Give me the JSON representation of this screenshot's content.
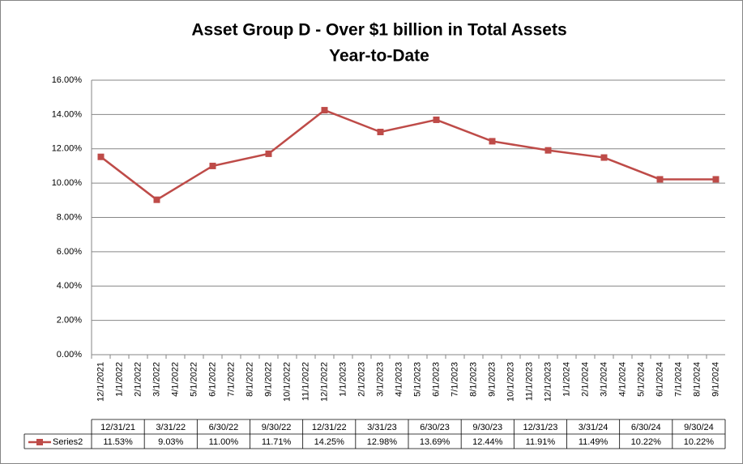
{
  "chart_data": {
    "type": "line",
    "title": "Asset Group D - Over $1 billion in Total Assets",
    "subtitle": "Year-to-Date",
    "categories": [
      "12/31/21",
      "3/31/22",
      "6/30/22",
      "9/30/22",
      "12/31/22",
      "3/31/23",
      "6/30/23",
      "9/30/23",
      "12/31/23",
      "3/31/24",
      "6/30/24",
      "9/30/24"
    ],
    "xticks": [
      "12/1/2021",
      "1/1/2022",
      "2/1/2022",
      "3/1/2022",
      "4/1/2022",
      "5/1/2022",
      "6/1/2022",
      "7/1/2022",
      "8/1/2022",
      "9/1/2022",
      "10/1/2022",
      "11/1/2022",
      "12/1/2022",
      "1/1/2023",
      "2/1/2023",
      "3/1/2023",
      "4/1/2023",
      "5/1/2023",
      "6/1/2023",
      "7/1/2023",
      "8/1/2023",
      "9/1/2023",
      "10/1/2023",
      "11/1/2023",
      "12/1/2023",
      "1/1/2024",
      "2/1/2024",
      "3/1/2024",
      "4/1/2024",
      "5/1/2024",
      "6/1/2024",
      "7/1/2024",
      "8/1/2024",
      "9/1/2024"
    ],
    "series": [
      {
        "name": "Series2",
        "color": "#be4b48",
        "values": [
          11.53,
          9.03,
          11.0,
          11.71,
          14.25,
          12.98,
          13.69,
          12.44,
          11.91,
          11.49,
          10.22,
          10.22
        ],
        "value_labels": [
          "11.53%",
          "9.03%",
          "11.00%",
          "11.71%",
          "14.25%",
          "12.98%",
          "13.69%",
          "12.44%",
          "11.91%",
          "11.49%",
          "10.22%",
          "10.22%"
        ]
      }
    ],
    "ylim": [
      0,
      16
    ],
    "yticks": [
      {
        "value": 0,
        "label": "0.00%"
      },
      {
        "value": 2,
        "label": "2.00%"
      },
      {
        "value": 4,
        "label": "4.00%"
      },
      {
        "value": 6,
        "label": "6.00%"
      },
      {
        "value": 8,
        "label": "8.00%"
      },
      {
        "value": 10,
        "label": "10.00%"
      },
      {
        "value": 12,
        "label": "12.00%"
      },
      {
        "value": 14,
        "label": "14.00%"
      },
      {
        "value": 16,
        "label": "16.00%"
      }
    ],
    "grid": true
  }
}
